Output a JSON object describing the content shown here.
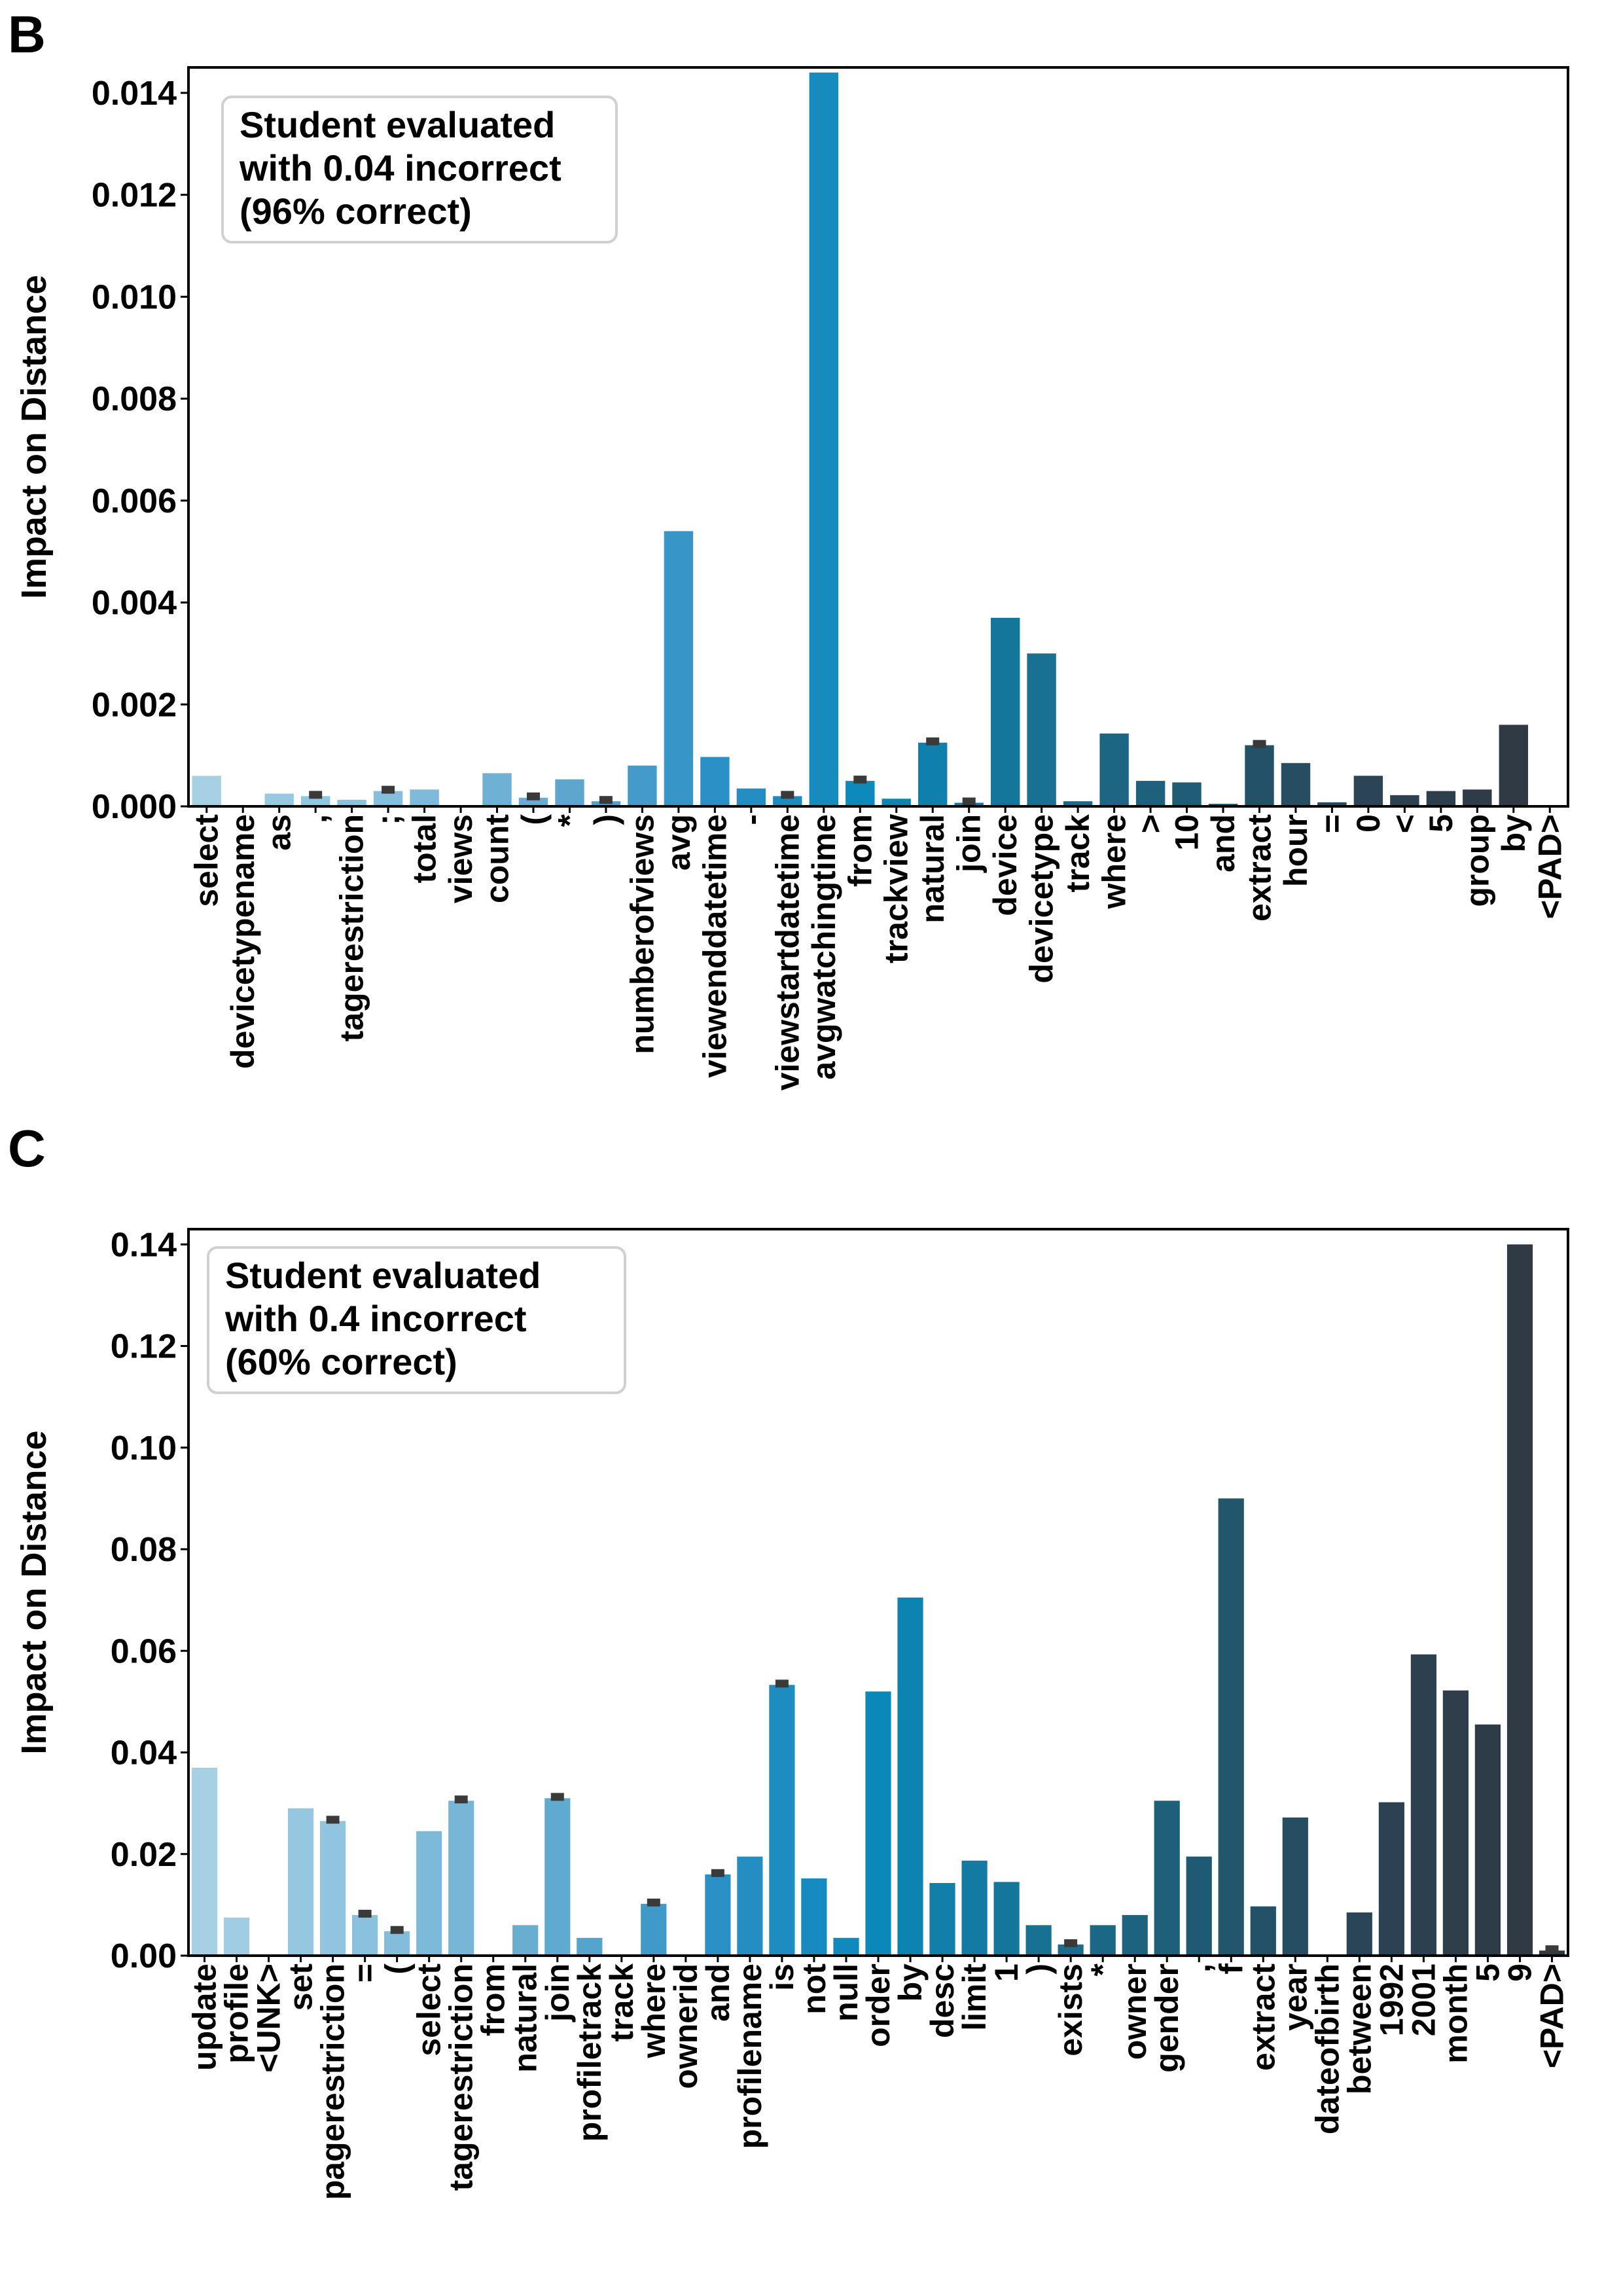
{
  "chart_data": [
    {
      "type": "bar",
      "panel_label": "B",
      "ylabel": "Impact on Distance",
      "ylim": [
        0,
        0.0145
      ],
      "yticks": [
        "0.000",
        "0.002",
        "0.004",
        "0.006",
        "0.008",
        "0.010",
        "0.012",
        "0.014"
      ],
      "legend_lines": [
        "Student evaluated",
        "with 0.04 incorrect",
        "(96% correct)"
      ],
      "legend_position": "top-left",
      "categories": [
        "select",
        "devicetypename",
        "as",
        ",",
        "tagerestriction",
        ";",
        "total",
        "views",
        "count",
        "(",
        "*",
        ")",
        "numberofviews",
        "avg",
        "viewenddatetime",
        "-",
        "viewstartdatetime",
        "avgwatchingtime",
        "from",
        "trackview",
        "natural",
        "join",
        "device",
        "devicetype",
        "track",
        "where",
        ">",
        "10",
        "and",
        "extract",
        "hour",
        "=",
        "0",
        "<",
        "5",
        "group",
        "by",
        "<PAD>"
      ],
      "values": [
        0.0006,
        0.0,
        0.00025,
        0.0002,
        0.00013,
        0.0003,
        0.00033,
        0.0,
        0.00065,
        0.00017,
        0.00053,
        0.0001,
        0.0008,
        0.0054,
        0.00097,
        0.00035,
        0.0002,
        0.0144,
        0.0005,
        0.00015,
        0.00125,
        7e-05,
        0.0037,
        0.003,
        0.0001,
        0.00143,
        0.0005,
        0.00047,
        5e-05,
        0.0012,
        0.00085,
        8e-05,
        0.0006,
        0.00022,
        0.0003,
        0.00033,
        0.0016,
        0.0
      ],
      "error_bars_at": [
        3,
        5,
        9,
        11,
        16,
        18,
        20,
        21,
        29
      ]
    },
    {
      "type": "bar",
      "panel_label": "C",
      "ylabel": "Impact on Distance",
      "ylim": [
        0,
        0.143
      ],
      "yticks": [
        "0.00",
        "0.02",
        "0.04",
        "0.06",
        "0.08",
        "0.10",
        "0.12",
        "0.14"
      ],
      "legend_lines": [
        "Student evaluated",
        "with 0.4 incorrect",
        "(60% correct)"
      ],
      "legend_position": "top-left",
      "categories": [
        "update",
        "profile",
        "<UNK>",
        "set",
        "pagerestriction",
        "=",
        "(",
        "select",
        "tagerestriction",
        "from",
        "natural",
        "join",
        "profiletrack",
        "track",
        "where",
        "ownerid",
        "and",
        "profilename",
        "is",
        "not",
        "null",
        "order",
        "by",
        "desc",
        "limit",
        "1",
        ")",
        "exists",
        "*",
        "owner",
        "gender",
        ",",
        "f",
        "extract",
        "year",
        "dateofbirth",
        "between",
        "1992",
        "2001",
        "month",
        "5",
        "9",
        "<PAD>"
      ],
      "values": [
        0.037,
        0.0075,
        0.0,
        0.029,
        0.0265,
        0.008,
        0.0048,
        0.0245,
        0.0305,
        0.0,
        0.006,
        0.031,
        0.0035,
        0.0,
        0.0102,
        0.0,
        0.016,
        0.0195,
        0.0533,
        0.0152,
        0.0035,
        0.052,
        0.0705,
        0.0143,
        0.0187,
        0.0145,
        0.006,
        0.0022,
        0.006,
        0.008,
        0.0305,
        0.0195,
        0.09,
        0.0097,
        0.0272,
        0.0,
        0.0085,
        0.0302,
        0.0593,
        0.0522,
        0.0455,
        0.14,
        0.001
      ],
      "error_bars_at": [
        4,
        5,
        6,
        8,
        11,
        14,
        16,
        18,
        27,
        42
      ]
    }
  ]
}
